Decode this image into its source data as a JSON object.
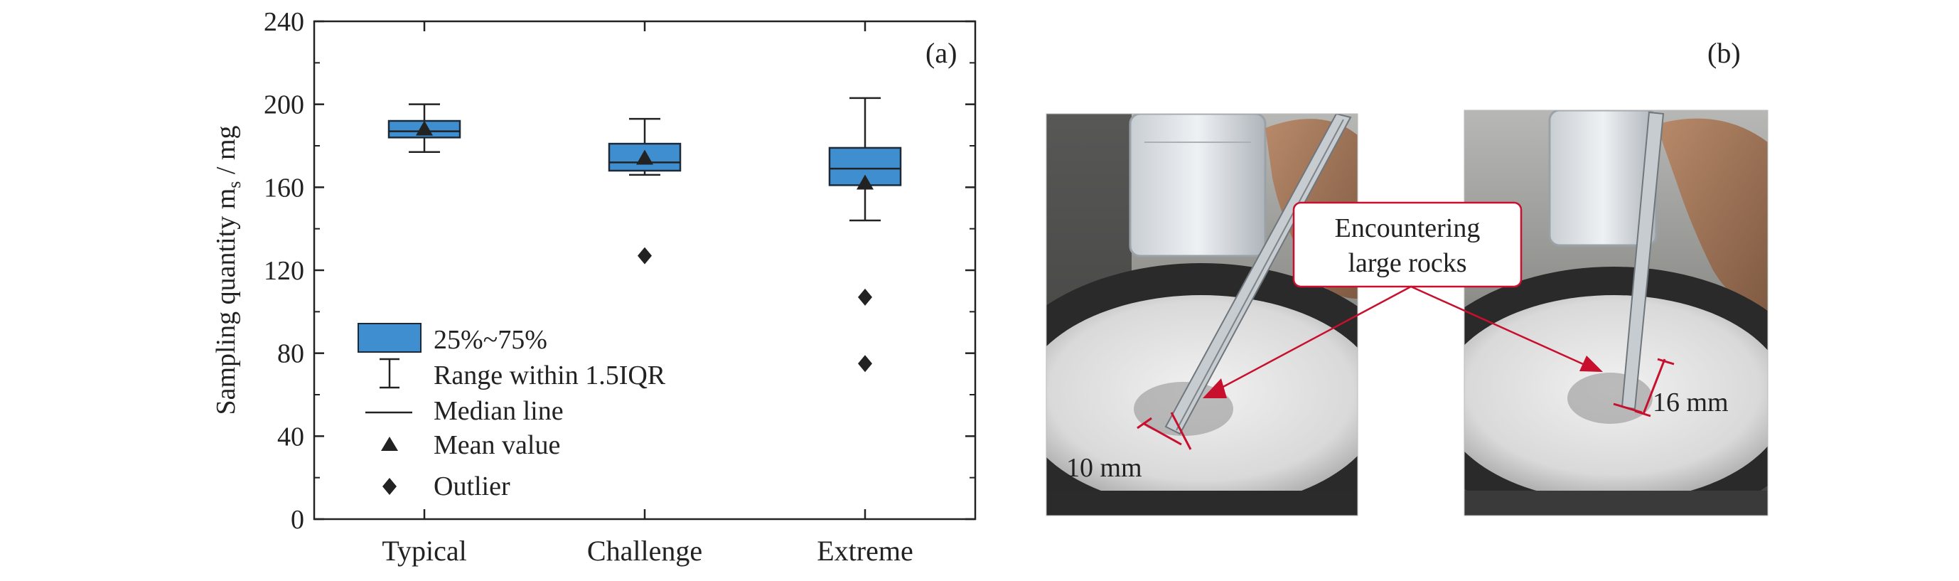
{
  "panel_a": {
    "label": "(a)",
    "ylabel": "Sampling quantity m",
    "ylabel_subscript": "s",
    "ylabel_unit": " / mg",
    "legend": {
      "box": "25%~75%",
      "whisker": "Range within 1.5IQR",
      "median": "Median line",
      "mean": "Mean value",
      "outlier": "Outlier"
    }
  },
  "panel_b": {
    "label": "(b)",
    "callout": [
      "Encountering",
      "large rocks"
    ],
    "dim_left": "10 mm",
    "dim_right": "16 mm"
  },
  "colors": {
    "box_fill": "#3f8fd0",
    "box_stroke": "#1c2a3a",
    "annotation_red": "#c8102e",
    "ink": "#222222"
  },
  "chart_data": {
    "type": "box",
    "categories": [
      "Typical",
      "Challenge",
      "Extreme"
    ],
    "ylim": [
      0,
      240
    ],
    "yticks": [
      0,
      40,
      80,
      120,
      160,
      200,
      240
    ],
    "grid": false,
    "legend_position": "bottom-left",
    "boxes": [
      {
        "category": "Typical",
        "whisker_low": 177,
        "q1": 184,
        "median": 187,
        "q3": 192,
        "whisker_high": 200,
        "mean": 188,
        "outliers": []
      },
      {
        "category": "Challenge",
        "whisker_low": 166,
        "q1": 168,
        "median": 172,
        "q3": 181,
        "whisker_high": 193,
        "mean": 174,
        "outliers": [
          127
        ]
      },
      {
        "category": "Extreme",
        "whisker_low": 144,
        "q1": 161,
        "median": 169,
        "q3": 179,
        "whisker_high": 203,
        "mean": 162,
        "outliers": [
          107,
          75
        ]
      }
    ]
  }
}
